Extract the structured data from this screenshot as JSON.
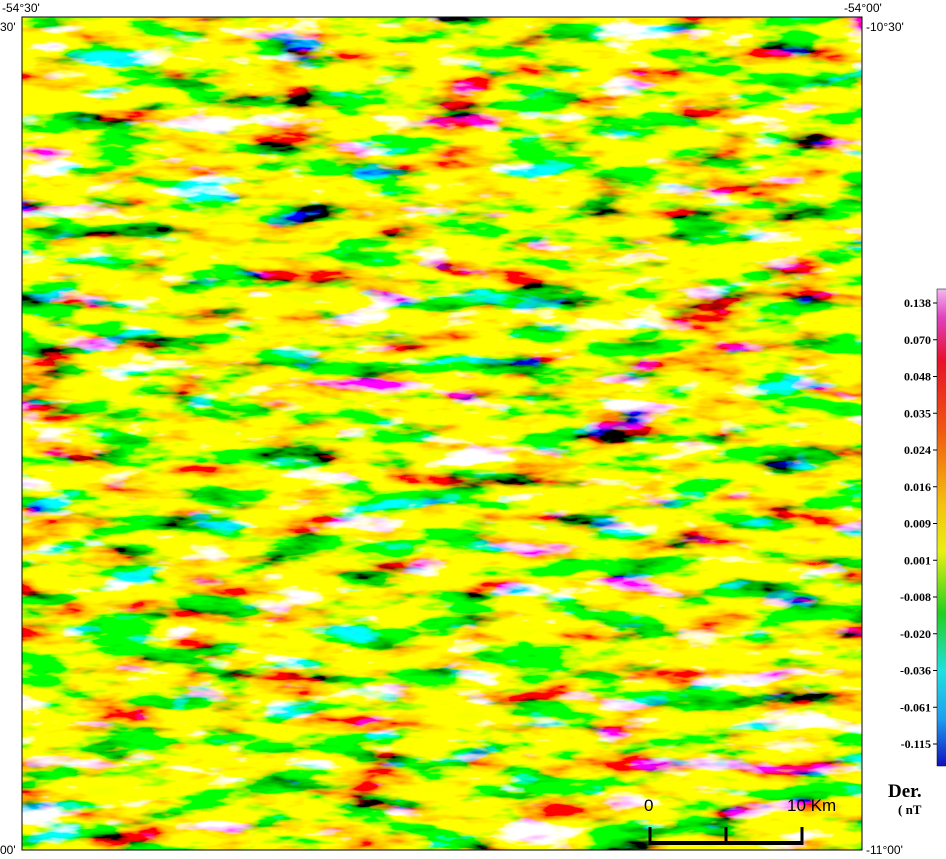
{
  "map": {
    "top_left_label": "-54°30'",
    "top_right_label": "-54°00'",
    "left_top_label": "30'",
    "left_bottom_label": "00'",
    "right_top_label": "-10°30'",
    "right_bottom_label": "-11°00'",
    "scale_start": "0",
    "scale_end": "10 Km"
  },
  "legend": {
    "labels": [
      "0.138",
      "0.070",
      "0.048",
      "0.035",
      "0.024",
      "0.016",
      "0.009",
      "0.001",
      "-0.008",
      "-0.020",
      "-0.036",
      "-0.061",
      "-0.115"
    ],
    "title": "Der.",
    "unit": "( nT"
  }
}
